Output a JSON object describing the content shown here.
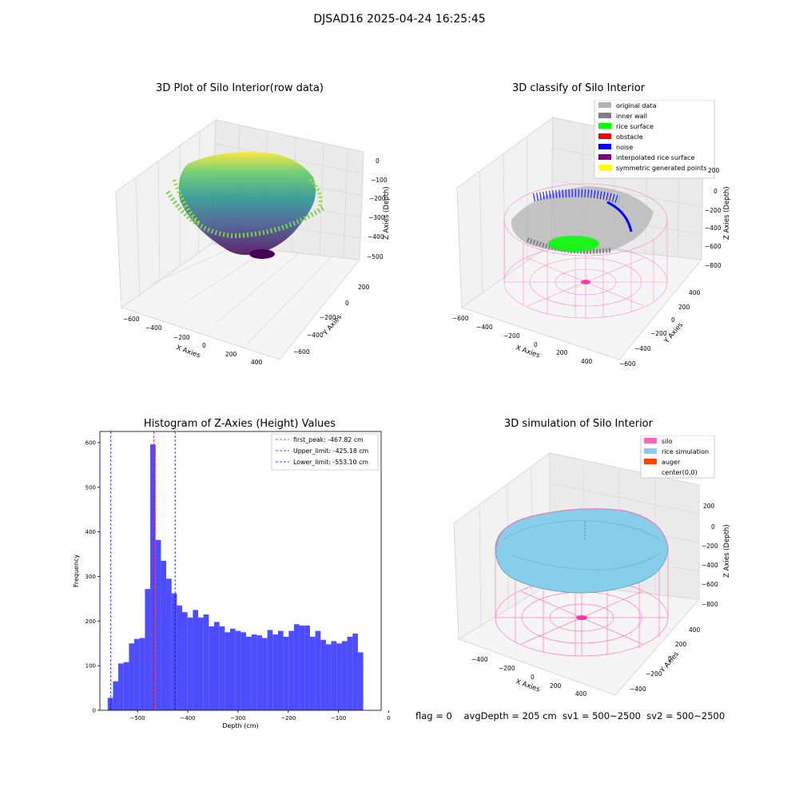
{
  "figure": {
    "suptitle": "DJSAD16 2025-04-24 16:25:45"
  },
  "panels": {
    "raw": {
      "title": "3D Plot of Silo Interior(row data)",
      "xlabel": "X Axies",
      "ylabel": "Y Axies",
      "zlabel": "Z Axies (Depth)",
      "xticks": [
        "−600",
        "−400",
        "−200",
        "0",
        "200",
        "400"
      ],
      "yticks": [
        "200",
        "0",
        "−200",
        "−400",
        "−600"
      ],
      "zticks": [
        "0",
        "−100",
        "−200",
        "−300",
        "−400",
        "−500"
      ]
    },
    "classify": {
      "title": "3D classify of Silo Interior",
      "xlabel": "X Axies",
      "ylabel": "Y Axies",
      "zlabel": "Z Axies (Depth)",
      "xticks": [
        "−600",
        "−400",
        "−200",
        "0",
        "200",
        "400"
      ],
      "yticks": [
        "400",
        "200",
        "0",
        "−200",
        "−400",
        "−600"
      ],
      "zticks": [
        "200",
        "0",
        "−200",
        "−400",
        "−600",
        "−800"
      ],
      "legend": [
        {
          "label": "original data",
          "color": "#b3b3b3"
        },
        {
          "label": "inner wall",
          "color": "#808080"
        },
        {
          "label": "rice surface",
          "color": "#00ff00"
        },
        {
          "label": "obstacle",
          "color": "#ff0000"
        },
        {
          "label": "noise",
          "color": "#0000ff"
        },
        {
          "label": "interpolated rice surface",
          "color": "#800080"
        },
        {
          "label": "symmetric generated points",
          "color": "#ffff00"
        }
      ]
    },
    "simulation": {
      "title": "3D simulation of Silo Interior",
      "xlabel": "X Axies",
      "ylabel": "Y Axies",
      "zlabel": "Z Axies (Depth)",
      "xticks": [
        "−400",
        "−200",
        "0",
        "200",
        "400"
      ],
      "yticks": [
        "400",
        "200",
        "0",
        "−200",
        "−400"
      ],
      "zticks": [
        "200",
        "0",
        "−200",
        "−400",
        "−600",
        "−800"
      ],
      "legend": [
        {
          "label": "silo",
          "color": "#ff69b4"
        },
        {
          "label": "rice simulation",
          "color": "#87ceeb"
        },
        {
          "label": "auger",
          "color": "#ff4500"
        },
        {
          "label": "center(0,0)",
          "color": ""
        }
      ]
    }
  },
  "status_line": "flag = 0    avgDepth = 205 cm  sv1 = 500~2500  sv2 = 500~2500",
  "chart_data": [
    {
      "type": "histogram",
      "title": "Histogram of Z-Axies (Height) Values",
      "xlabel": "Depth (cm)",
      "ylabel": "Frequency",
      "xlim": [
        -575,
        -15
      ],
      "ylim": [
        0,
        625
      ],
      "xticks": [
        -500,
        -400,
        -300,
        -200,
        -100,
        0
      ],
      "xtick_labels": [
        "−500",
        "−400",
        "−300",
        "−200",
        "−100",
        "0"
      ],
      "yticks": [
        0,
        100,
        200,
        300,
        400,
        500,
        600
      ],
      "bar_color": "#4d4dff",
      "bins": {
        "start": -559.5,
        "width": 10.6
      },
      "values": [
        28,
        65,
        105,
        108,
        150,
        160,
        162,
        272,
        596,
        382,
        335,
        295,
        262,
        235,
        220,
        208,
        225,
        208,
        215,
        188,
        198,
        188,
        175,
        183,
        178,
        175,
        165,
        170,
        168,
        162,
        180,
        170,
        178,
        165,
        178,
        193,
        190,
        190,
        165,
        178,
        158,
        148,
        155,
        150,
        155,
        165,
        172,
        130
      ],
      "vlines": [
        {
          "label": "first_peak: -467.82 cm",
          "x": -467.82,
          "color": "#ff0000"
        },
        {
          "label": "Upper_limit: -425.18 cm",
          "x": -425.18,
          "color": "#0000ff"
        },
        {
          "label": "Lower_limit: -553.10 cm",
          "x": -553.1,
          "color": "#0000ff"
        }
      ]
    }
  ]
}
